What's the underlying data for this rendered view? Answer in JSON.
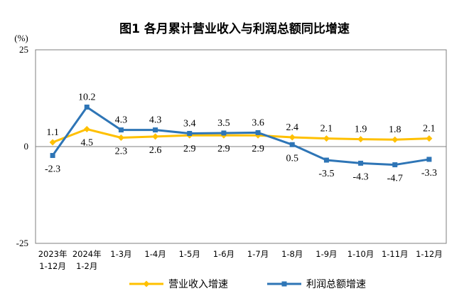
{
  "chart_data": {
    "type": "line",
    "title": "图1  各月累计营业收入与利润总额同比增速",
    "y_unit": "(%)",
    "ylim": [
      -25,
      25
    ],
    "y_ticks": [
      "25",
      "0",
      "-25"
    ],
    "categories": [
      [
        "2023年",
        "1-12月"
      ],
      [
        "2024年",
        "1-2月"
      ],
      [
        "1-3月"
      ],
      [
        "1-4月"
      ],
      [
        "1-5月"
      ],
      [
        "1-6月"
      ],
      [
        "1-7月"
      ],
      [
        "1-8月"
      ],
      [
        "1-9月"
      ],
      [
        "1-10月"
      ],
      [
        "1-11月"
      ],
      [
        "1-12月"
      ]
    ],
    "series": [
      {
        "name": "营业收入增速",
        "color": "#FFC000",
        "marker": "diamond",
        "values": [
          1.1,
          4.5,
          2.3,
          2.6,
          2.9,
          2.9,
          2.9,
          2.4,
          2.1,
          1.9,
          1.8,
          2.1
        ]
      },
      {
        "name": "利润总额增速",
        "color": "#2E75B6",
        "marker": "square",
        "values": [
          -2.3,
          10.2,
          4.3,
          4.3,
          3.4,
          3.5,
          3.6,
          0.5,
          -3.5,
          -4.3,
          -4.7,
          -3.3
        ]
      }
    ],
    "grid": false,
    "legend": "bottom"
  }
}
